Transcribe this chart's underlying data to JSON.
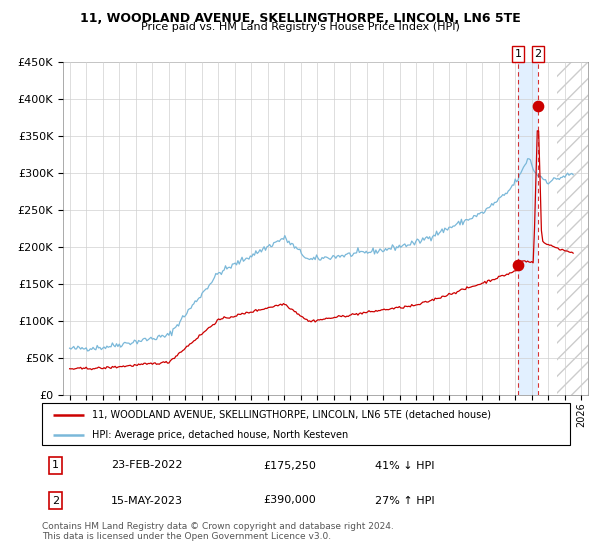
{
  "title": "11, WOODLAND AVENUE, SKELLINGTHORPE, LINCOLN, LN6 5TE",
  "subtitle": "Price paid vs. HM Land Registry's House Price Index (HPI)",
  "legend_line1": "11, WOODLAND AVENUE, SKELLINGTHORPE, LINCOLN, LN6 5TE (detached house)",
  "legend_line2": "HPI: Average price, detached house, North Kesteven",
  "table": [
    {
      "num": "1",
      "date": "23-FEB-2022",
      "price": "£175,250",
      "pct": "41% ↓ HPI"
    },
    {
      "num": "2",
      "date": "15-MAY-2023",
      "price": "£390,000",
      "pct": "27% ↑ HPI"
    }
  ],
  "footnote": "Contains HM Land Registry data © Crown copyright and database right 2024.\nThis data is licensed under the Open Government Licence v3.0.",
  "hpi_color": "#7ab8d9",
  "price_color": "#cc0000",
  "dot_color": "#cc0000",
  "highlight_color": "#ddeeff",
  "ylim": [
    0,
    450000
  ],
  "yticks": [
    0,
    50000,
    100000,
    150000,
    200000,
    250000,
    300000,
    350000,
    400000,
    450000
  ],
  "sale1_x": 2022.15,
  "sale1_y": 175250,
  "sale2_x": 2023.37,
  "sale2_y": 390000,
  "highlight_start": 2022.15,
  "highlight_end": 2023.37,
  "hatch_start": 2024.5,
  "xlim_left": 1994.6,
  "xlim_right": 2026.4
}
